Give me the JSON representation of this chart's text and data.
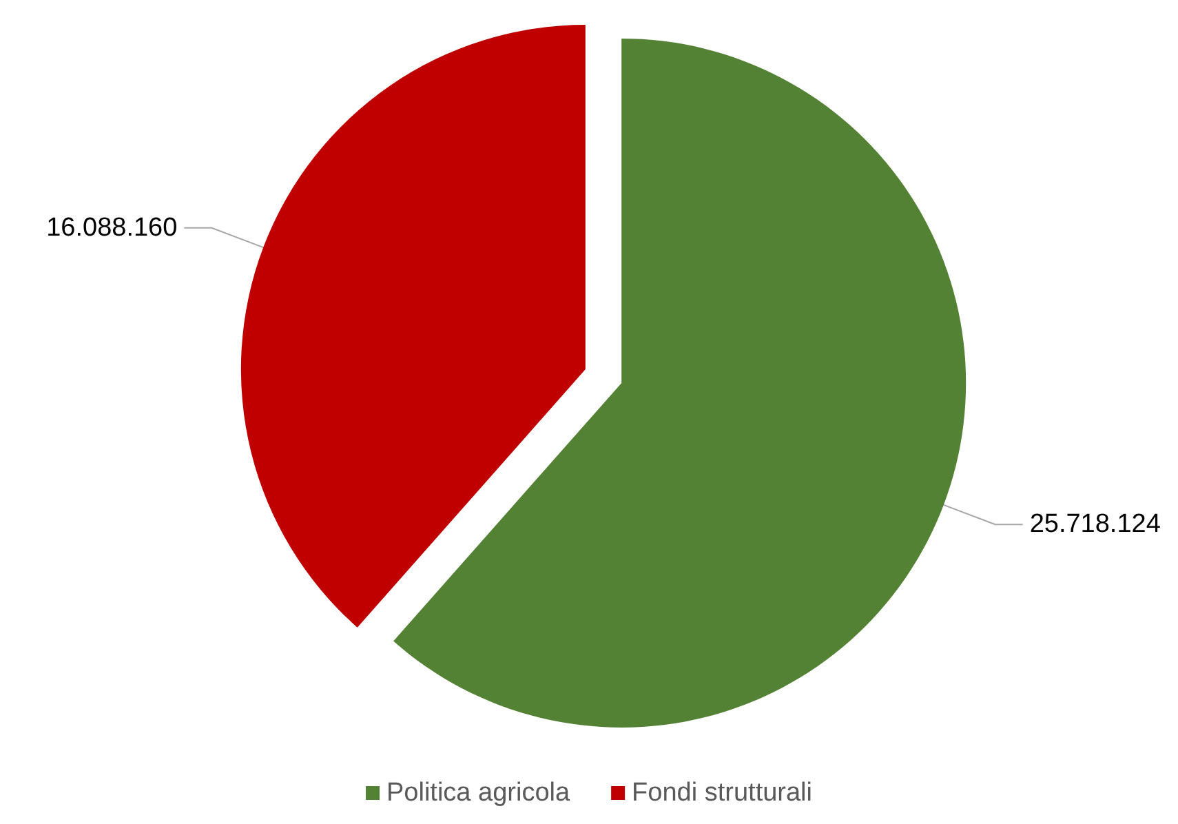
{
  "chart_data": {
    "type": "pie",
    "categories": [
      "Politica agricola",
      "Fondi strutturali"
    ],
    "values": [
      25718124,
      16088160
    ],
    "colors": [
      "#548235",
      "#c00000"
    ],
    "value_labels": [
      "25.718.124",
      "16.088.160"
    ],
    "legend": "bottom"
  }
}
